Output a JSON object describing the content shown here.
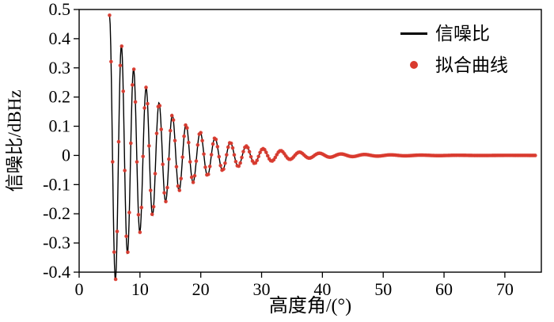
{
  "figure": {
    "background": "#ffffff"
  },
  "chart_data": {
    "type": "line",
    "title": "",
    "xlabel": "高度角/(°)",
    "ylabel": "信噪比/dBHz",
    "xlim": [
      0,
      76
    ],
    "ylim": [
      -0.4,
      0.5
    ],
    "x_ticks": [
      0,
      10,
      20,
      30,
      40,
      50,
      60,
      70
    ],
    "y_ticks": [
      -0.4,
      -0.3,
      -0.2,
      -0.1,
      0,
      0.1,
      0.2,
      0.3,
      0.4,
      0.5
    ],
    "grid": false,
    "axis_color": "#000000",
    "legend": {
      "position": "top-right",
      "entries": [
        {
          "label": "信噪比",
          "marker": "line",
          "color": "#000000"
        },
        {
          "label": "拟合曲线",
          "marker": "dot",
          "color": "#d93a2e"
        }
      ]
    },
    "series_model": {
      "form": "y = A0*exp(-decay*x)*cos(2*pi*(f0*x - chirp*x^2 + phase0))",
      "x_start": 5,
      "x_end": 75,
      "A0": 0.875,
      "decay": 0.12,
      "f0": 0.55,
      "chirp": 0.00325,
      "phase0": -2.669,
      "line_step": 0.1,
      "marker_step": 0.25
    },
    "approx_extrema": [
      [
        5.0,
        0.48
      ],
      [
        6.1,
        -0.37
      ],
      [
        7.2,
        0.44
      ],
      [
        8.3,
        -0.32
      ],
      [
        9.4,
        0.3
      ],
      [
        10.5,
        -0.26
      ],
      [
        11.7,
        0.23
      ],
      [
        12.9,
        -0.2
      ],
      [
        14.1,
        0.17
      ],
      [
        15.4,
        -0.15
      ],
      [
        16.7,
        0.12
      ],
      [
        18.1,
        -0.1
      ],
      [
        19.5,
        0.085
      ],
      [
        21.0,
        -0.07
      ],
      [
        22.6,
        0.058
      ],
      [
        24.3,
        -0.047
      ],
      [
        26.1,
        0.038
      ],
      [
        28.0,
        -0.03
      ],
      [
        30.0,
        0.025
      ],
      [
        32.2,
        -0.019
      ],
      [
        34.6,
        0.015
      ],
      [
        37.2,
        -0.011
      ],
      [
        40.0,
        0.008
      ],
      [
        43.2,
        -0.006
      ],
      [
        46.8,
        0.004
      ],
      [
        51.0,
        -0.003
      ],
      [
        56.0,
        0.002
      ],
      [
        62.0,
        -0.001
      ],
      [
        75.0,
        0.0
      ]
    ]
  }
}
